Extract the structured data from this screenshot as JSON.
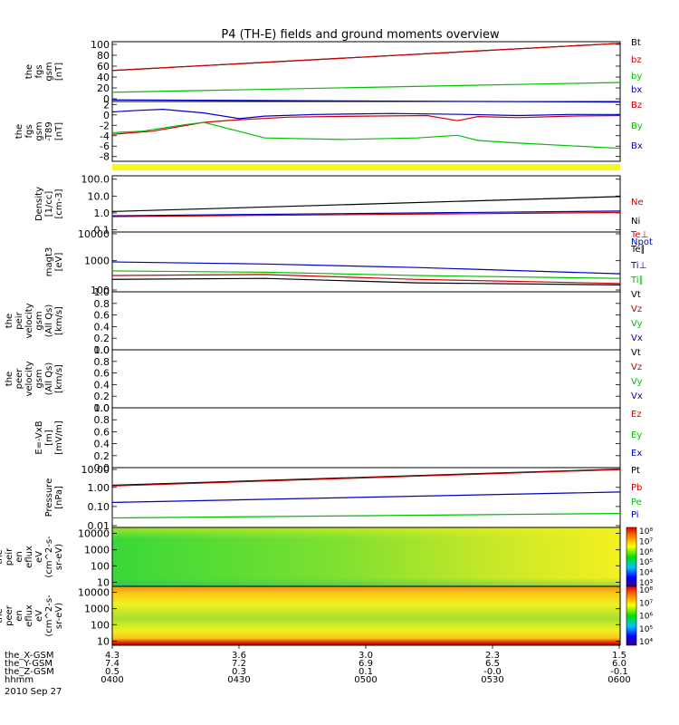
{
  "title": "P4 (TH-E) fields and ground moments overview",
  "panels": [
    {
      "id": "fgs",
      "ylabel": [
        "the",
        "fgs",
        "gsm",
        "[nT]"
      ],
      "ticks": [
        "100",
        "80",
        "60",
        "40",
        "20",
        "0"
      ],
      "legend": [
        {
          "text": "Bt",
          "color": "#000000"
        },
        {
          "text": "bz",
          "color": "#d00000"
        },
        {
          "text": "by",
          "color": "#00c000"
        },
        {
          "text": "bx",
          "color": "#0000c0"
        }
      ]
    },
    {
      "id": "fgs-t89",
      "ylabel": [
        "the",
        "fgs",
        "gsm",
        "-T89",
        "[nT]"
      ],
      "ticks": [
        "2",
        "0",
        "-2",
        "-4",
        "-6",
        "-8"
      ],
      "legend": [
        {
          "text": "Bz",
          "color": "#d00000"
        },
        {
          "text": "By",
          "color": "#00c000"
        },
        {
          "text": "Bx",
          "color": "#0000c0"
        }
      ]
    },
    {
      "id": "density",
      "ylabel": [
        "Density",
        "[1/cc]",
        "[cm-3]"
      ],
      "ticks": [
        "100.0",
        "10.0",
        "1.0",
        "0.1"
      ],
      "legend": [
        {
          "text": "Ne",
          "color": "#d00000"
        },
        {
          "text": "Ni",
          "color": "#000000"
        },
        {
          "text": "Npot",
          "color": "#0000c0"
        }
      ]
    },
    {
      "id": "temperature",
      "ylabel": [
        "magt3",
        "[eV]"
      ],
      "ticks": [
        "10000",
        "1000",
        "100"
      ],
      "legend": [
        {
          "text": "Te⊥",
          "color": "#d00000"
        },
        {
          "text": "Te∥",
          "color": "#000000"
        },
        {
          "text": "Ti⊥",
          "color": "#0000c0"
        },
        {
          "text": "Ti∥",
          "color": "#00c000"
        }
      ]
    },
    {
      "id": "peir-velocity",
      "ylabel": [
        "the",
        "peir",
        "velocity",
        "gsm",
        "(All Qs)",
        "[km/s]"
      ],
      "ticks": [
        "1.0",
        "0.8",
        "0.6",
        "0.4",
        "0.2",
        "0.0"
      ],
      "legend": [
        {
          "text": "Vt",
          "color": "#000000"
        },
        {
          "text": "Vz",
          "color": "#d00000"
        },
        {
          "text": "Vy",
          "color": "#00c000"
        },
        {
          "text": "Vx",
          "color": "#0000c0"
        }
      ]
    },
    {
      "id": "peer-velocity",
      "ylabel": [
        "the",
        "peer",
        "velocity",
        "gsm",
        "(All Qs)",
        "[km/s]"
      ],
      "ticks": [
        "1.0",
        "0.8",
        "0.6",
        "0.4",
        "0.2",
        "0.0"
      ],
      "legend": [
        {
          "text": "Vt",
          "color": "#000000"
        },
        {
          "text": "Vz",
          "color": "#d00000"
        },
        {
          "text": "Vy",
          "color": "#00c000"
        },
        {
          "text": "Vx",
          "color": "#0000c0"
        }
      ]
    },
    {
      "id": "efield",
      "ylabel": [
        "E=-VxB",
        "[m]",
        "[mV/m]"
      ],
      "ticks": [
        "1.0",
        "0.8",
        "0.6",
        "0.4",
        "0.2",
        "0.0"
      ],
      "legend": [
        {
          "text": "Ez",
          "color": "#d00000"
        },
        {
          "text": "Ey",
          "color": "#00c000"
        },
        {
          "text": "Ex",
          "color": "#0000c0"
        }
      ]
    },
    {
      "id": "pressure",
      "ylabel": [
        "Pressure",
        "[nPa]"
      ],
      "ticks": [
        "10.00",
        "1.00",
        "0.10",
        "0.01"
      ],
      "legend": [
        {
          "text": "Pt",
          "color": "#000000"
        },
        {
          "text": "Pb",
          "color": "#d00000"
        },
        {
          "text": "Pe",
          "color": "#00c000"
        },
        {
          "text": "Pi",
          "color": "#0000c0"
        }
      ]
    },
    {
      "id": "peir-spectrogram",
      "ylabel": [
        "the",
        "peir",
        "en",
        "eflux",
        "eV",
        "(cm^2-s-",
        "sr-eV)"
      ],
      "ticks": [
        "10000",
        "1000",
        "100",
        "10"
      ],
      "colorbar": [
        "10⁸",
        "10⁷",
        "10⁶",
        "10⁵",
        "10⁴",
        "10³"
      ]
    },
    {
      "id": "peer-spectrogram",
      "ylabel": [
        "the",
        "peer",
        "en",
        "eflux",
        "eV",
        "(cm^2-s-",
        "sr-eV)"
      ],
      "ticks": [
        "10000",
        "1000",
        "100",
        "10"
      ],
      "colorbar": [
        "10⁸",
        "10⁷",
        "10⁶",
        "10⁵",
        "10⁴"
      ]
    }
  ],
  "footer": {
    "rows": [
      {
        "label": "the_X-GSM",
        "values": [
          "4.3",
          "3.6",
          "3.0",
          "2.3",
          "1.5"
        ]
      },
      {
        "label": "the_Y-GSM",
        "values": [
          "7.4",
          "7.2",
          "6.9",
          "6.5",
          "6.0"
        ]
      },
      {
        "label": "the_Z-GSM",
        "values": [
          "0.5",
          "0.3",
          "0.1",
          "-0.0",
          "-0.1"
        ]
      },
      {
        "label": "hhmm",
        "values": [
          "0400",
          "0430",
          "0500",
          "0530",
          "0600"
        ]
      }
    ],
    "date": "2010 Sep 27"
  },
  "chart_data": {
    "type": "line",
    "x_ticks": [
      "0400",
      "0430",
      "0500",
      "0530",
      "0600"
    ],
    "series": [
      {
        "panel": "fgs",
        "name": "Bt",
        "color": "#000000",
        "ylim": [
          -5,
          105
        ],
        "x": [
          0,
          1
        ],
        "y": [
          52,
          102
        ]
      },
      {
        "panel": "fgs",
        "name": "bz",
        "color": "#d00000",
        "ylim": [
          -5,
          105
        ],
        "x": [
          0,
          1
        ],
        "y": [
          52,
          102
        ]
      },
      {
        "panel": "fgs",
        "name": "by",
        "color": "#00c000",
        "ylim": [
          -5,
          105
        ],
        "x": [
          0,
          1
        ],
        "y": [
          12,
          30
        ]
      },
      {
        "panel": "fgs",
        "name": "bx",
        "color": "#0000c0",
        "ylim": [
          -5,
          105
        ],
        "x": [
          0,
          1
        ],
        "y": [
          -2,
          -6
        ]
      },
      {
        "panel": "fgs-t89",
        "name": "Bz",
        "color": "#d00000",
        "ylim": [
          -9,
          2.5
        ],
        "x": [
          0,
          0.08,
          0.18,
          0.25,
          0.35,
          0.5,
          0.62,
          0.68,
          0.72,
          0.8,
          0.9,
          1
        ],
        "y": [
          -3.8,
          -3.2,
          -1.5,
          -1.0,
          -0.5,
          -0.3,
          -0.2,
          -1.2,
          -0.4,
          -0.6,
          -0.3,
          -0.2
        ]
      },
      {
        "panel": "fgs-t89",
        "name": "By",
        "color": "#00c000",
        "ylim": [
          -9,
          2.5
        ],
        "x": [
          0,
          0.06,
          0.14,
          0.18,
          0.22,
          0.3,
          0.45,
          0.6,
          0.68,
          0.72,
          0.8,
          0.9,
          1
        ],
        "y": [
          -3.5,
          -3.2,
          -2.0,
          -1.5,
          -2.5,
          -4.5,
          -4.8,
          -4.5,
          -4.0,
          -5.0,
          -5.5,
          -6.0,
          -6.5
        ]
      },
      {
        "panel": "fgs-t89",
        "name": "Bx",
        "color": "#0000c0",
        "ylim": [
          -9,
          2.5
        ],
        "x": [
          0,
          0.05,
          0.1,
          0.18,
          0.25,
          0.3,
          0.4,
          0.55,
          0.7,
          0.8,
          0.9,
          1
        ],
        "y": [
          0.5,
          0.8,
          1.0,
          0.3,
          -0.8,
          -0.3,
          0.0,
          0.2,
          0.0,
          -0.2,
          0.0,
          0.0
        ]
      },
      {
        "panel": "density",
        "name": "Ni",
        "color": "#000000",
        "ylim": [
          0.1,
          200
        ],
        "log": true,
        "x": [
          0,
          1
        ],
        "y": [
          1.6,
          12
        ]
      },
      {
        "panel": "density",
        "name": "Ne",
        "color": "#d00000",
        "ylim": [
          0.1,
          200
        ],
        "log": true,
        "x": [
          0,
          1
        ],
        "y": [
          0.8,
          1.4
        ]
      },
      {
        "panel": "density",
        "name": "Npot",
        "color": "#0000c0",
        "ylim": [
          0.1,
          200
        ],
        "log": true,
        "x": [
          0,
          1
        ],
        "y": [
          0.9,
          1.7
        ]
      },
      {
        "panel": "temperature",
        "name": "Ti⊥",
        "color": "#0000c0",
        "ylim": [
          100,
          10000
        ],
        "log": true,
        "x": [
          0,
          0.3,
          0.6,
          1
        ],
        "y": [
          1000,
          850,
          650,
          400
        ]
      },
      {
        "panel": "temperature",
        "name": "Ti∥",
        "color": "#00c000",
        "ylim": [
          100,
          10000
        ],
        "log": true,
        "x": [
          0,
          0.3,
          0.6,
          1
        ],
        "y": [
          500,
          450,
          350,
          280
        ]
      },
      {
        "panel": "temperature",
        "name": "Te⊥",
        "color": "#d00000",
        "ylim": [
          100,
          10000
        ],
        "log": true,
        "x": [
          0,
          0.3,
          0.6,
          1
        ],
        "y": [
          350,
          380,
          260,
          190
        ]
      },
      {
        "panel": "temperature",
        "name": "Te∥",
        "color": "#000000",
        "ylim": [
          100,
          10000
        ],
        "log": true,
        "x": [
          0,
          0.3,
          0.6,
          1
        ],
        "y": [
          260,
          280,
          200,
          170
        ]
      },
      {
        "panel": "pressure",
        "name": "Pt",
        "color": "#000000",
        "ylim": [
          0.01,
          10
        ],
        "log": true,
        "x": [
          0,
          1
        ],
        "y": [
          1.3,
          8.5
        ]
      },
      {
        "panel": "pressure",
        "name": "Pb",
        "color": "#d00000",
        "ylim": [
          0.01,
          10
        ],
        "log": true,
        "x": [
          0,
          1
        ],
        "y": [
          1.2,
          8.0
        ]
      },
      {
        "panel": "pressure",
        "name": "Pi",
        "color": "#0000c0",
        "ylim": [
          0.01,
          10
        ],
        "log": true,
        "x": [
          0,
          1
        ],
        "y": [
          0.18,
          0.6
        ]
      },
      {
        "panel": "pressure",
        "name": "Pe",
        "color": "#00c000",
        "ylim": [
          0.01,
          10
        ],
        "log": true,
        "x": [
          0,
          1
        ],
        "y": [
          0.03,
          0.05
        ]
      }
    ]
  }
}
